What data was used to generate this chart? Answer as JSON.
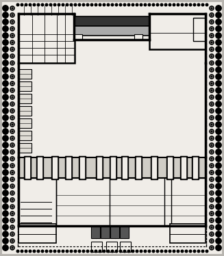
{
  "bg_color": "#b8b5b0",
  "paper_color": "#f0ede8",
  "wall_color": "#000000",
  "thin_line": "#111111",
  "fig_width": 3.27,
  "fig_height": 3.74,
  "dpi": 100,
  "dot_outer_color": "#111111",
  "dot_inner_color": "#e0ddd8"
}
